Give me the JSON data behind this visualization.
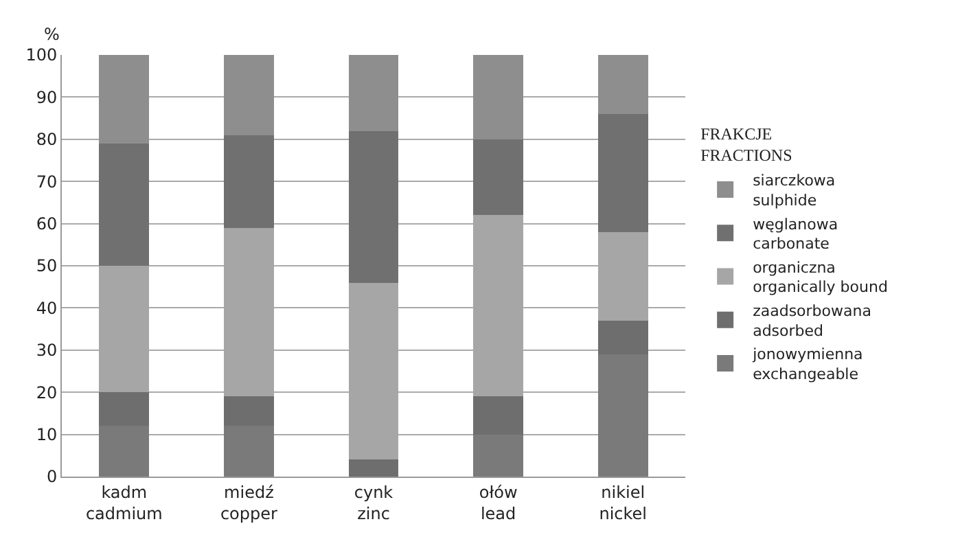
{
  "chart_data": {
    "type": "bar",
    "stacked": true,
    "ylabel": "%",
    "legend_title": "FRAKCJE\nFRACTIONS",
    "categories": [
      "kadm\ncadmium",
      "miedź\ncopper",
      "cynk\nzinc",
      "ołów\nlead",
      "nikiel\nnickel"
    ],
    "series": [
      {
        "name": "jonowymienna\nexchangeable",
        "color": "#7a7a7a",
        "values": [
          12,
          12,
          0,
          10,
          29
        ]
      },
      {
        "name": "zaadsorbowana\nadsorbed",
        "color": "#6e6e6e",
        "values": [
          8,
          7,
          4,
          9,
          8
        ]
      },
      {
        "name": "organiczna\norganically bound",
        "color": "#a6a6a6",
        "values": [
          30,
          40,
          42,
          43,
          21
        ]
      },
      {
        "name": "węglanowa\ncarbonate",
        "color": "#707070",
        "values": [
          29,
          22,
          36,
          18,
          28
        ]
      },
      {
        "name": "siarczkowa\nsulphide",
        "color": "#8e8e8e",
        "values": [
          21,
          19,
          18,
          20,
          14
        ]
      }
    ],
    "ylim": [
      0,
      100
    ],
    "yticks": [
      0,
      10,
      20,
      30,
      40,
      50,
      60,
      70,
      80,
      90,
      100
    ],
    "grid": "y",
    "legend": "right"
  }
}
